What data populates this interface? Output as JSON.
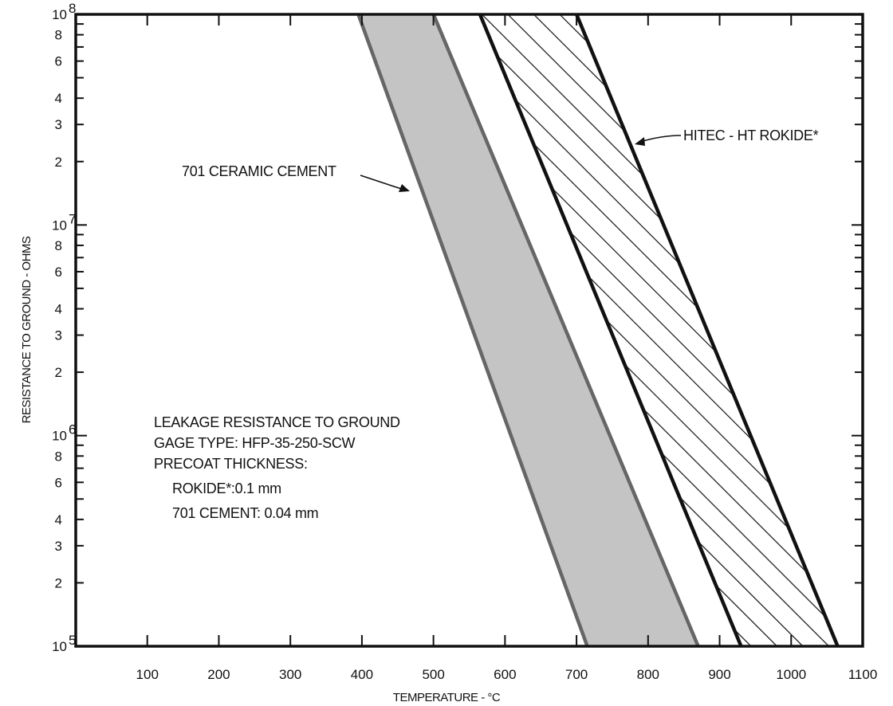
{
  "chart_data": {
    "type": "area",
    "xlabel": "TEMPERATURE - °C",
    "ylabel": "RESISTANCE TO GROUND - OHMS",
    "xlim": [
      0,
      1100
    ],
    "ylim": [
      100000,
      100000000
    ],
    "yscale": "log",
    "grid": false,
    "x_ticks": [
      100,
      200,
      300,
      400,
      500,
      600,
      700,
      800,
      900,
      1000,
      1100
    ],
    "y_major_labels": [
      {
        "value": 100000,
        "base": "10",
        "exp": "5"
      },
      {
        "value": 1000000,
        "base": "10",
        "exp": "6"
      },
      {
        "value": 10000000,
        "base": "10",
        "exp": "7"
      },
      {
        "value": 100000000,
        "base": "10",
        "exp": "8"
      }
    ],
    "y_minor_labels": [
      "2",
      "3",
      "4",
      "6",
      "8"
    ],
    "series": [
      {
        "name": "701 CERAMIC CEMENT",
        "fill": "#c4c4c4",
        "stroke": "#666666",
        "upper": [
          {
            "x": 500,
            "y": 100000000
          },
          {
            "x": 870,
            "y": 100000
          }
        ],
        "lower": [
          {
            "x": 395,
            "y": 100000000
          },
          {
            "x": 715,
            "y": 100000
          }
        ]
      },
      {
        "name": "HITEC - HT ROKIDE*",
        "fill": "hatch",
        "stroke": "#111111",
        "upper": [
          {
            "x": 700,
            "y": 100000000
          },
          {
            "x": 1065,
            "y": 100000
          }
        ],
        "lower": [
          {
            "x": 565,
            "y": 100000000
          },
          {
            "x": 930,
            "y": 100000
          }
        ]
      }
    ],
    "annotations": {
      "cement_label": "701 CERAMIC CEMENT",
      "rokide_label": "HITEC - HT ROKIDE*",
      "info_lines": [
        "LEAKAGE RESISTANCE TO GROUND",
        "GAGE TYPE: HFP-35-250-SCW",
        "PRECOAT THICKNESS:",
        "ROKIDE*:0.1 mm",
        "701 CEMENT: 0.04 mm"
      ]
    }
  }
}
